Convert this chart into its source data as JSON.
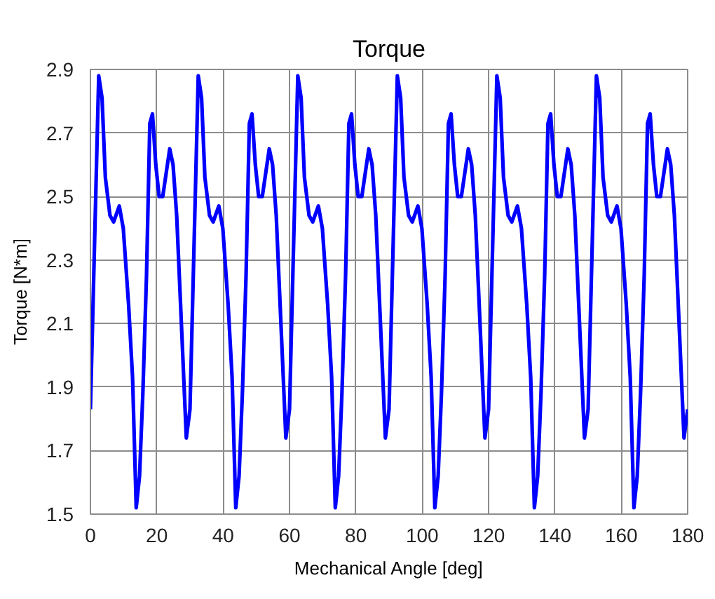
{
  "chart_data": {
    "type": "line",
    "title": "Torque",
    "xlabel": "Mechanical Angle [deg]",
    "ylabel": "Torque [N*m]",
    "series": [
      {
        "color": "#0000ff",
        "x": [
          0,
          2.5,
          3.5,
          4.5,
          5.9,
          7,
          8.7,
          9.9,
          11.5,
          12.7,
          13.8,
          14.8,
          15.8,
          16.9,
          17.9,
          18.7,
          19.7,
          20.7,
          21.8,
          23.9,
          24.9,
          26,
          27.5,
          28.9,
          30,
          32.5,
          33.5,
          34.5,
          35.9,
          37,
          38.7,
          39.9,
          41.5,
          42.7,
          43.8,
          44.8,
          45.8,
          46.9,
          47.9,
          48.7,
          49.7,
          50.7,
          51.8,
          53.9,
          54.9,
          56,
          57.5,
          58.9,
          60,
          62.5,
          63.5,
          64.5,
          65.9,
          67,
          68.7,
          69.9,
          71.5,
          72.7,
          73.8,
          74.8,
          75.8,
          76.9,
          77.9,
          78.7,
          79.7,
          80.7,
          81.8,
          83.9,
          84.9,
          86,
          87.5,
          88.9,
          90,
          92.5,
          93.5,
          94.5,
          95.9,
          97,
          98.7,
          99.9,
          101.5,
          102.7,
          103.8,
          104.8,
          105.8,
          106.9,
          107.9,
          108.7,
          109.7,
          110.7,
          111.8,
          113.9,
          114.9,
          116,
          117.5,
          118.9,
          120,
          122.5,
          123.5,
          124.5,
          125.9,
          127,
          128.7,
          129.9,
          131.5,
          132.7,
          133.8,
          134.8,
          135.8,
          136.9,
          137.9,
          138.7,
          139.7,
          140.7,
          141.8,
          143.9,
          144.9,
          146,
          147.5,
          148.9,
          150,
          152.5,
          153.5,
          154.5,
          155.9,
          157,
          158.7,
          159.9,
          161.5,
          162.7,
          163.8,
          164.8,
          165.8,
          166.9,
          167.9,
          168.7,
          169.7,
          170.7,
          171.8,
          173.9,
          174.9,
          176,
          177.5,
          178.9,
          180
        ],
        "values": [
          1.83,
          2.88,
          2.81,
          2.56,
          2.44,
          2.42,
          2.47,
          2.4,
          2.16,
          1.93,
          1.52,
          1.62,
          1.88,
          2.25,
          2.73,
          2.76,
          2.6,
          2.5,
          2.5,
          2.65,
          2.6,
          2.44,
          2.08,
          1.74,
          1.83,
          2.88,
          2.81,
          2.56,
          2.44,
          2.42,
          2.47,
          2.4,
          2.16,
          1.93,
          1.52,
          1.62,
          1.88,
          2.25,
          2.73,
          2.76,
          2.6,
          2.5,
          2.5,
          2.65,
          2.6,
          2.44,
          2.08,
          1.74,
          1.83,
          2.88,
          2.81,
          2.56,
          2.44,
          2.42,
          2.47,
          2.4,
          2.16,
          1.93,
          1.52,
          1.62,
          1.88,
          2.25,
          2.73,
          2.76,
          2.6,
          2.5,
          2.5,
          2.65,
          2.6,
          2.44,
          2.08,
          1.74,
          1.83,
          2.88,
          2.81,
          2.56,
          2.44,
          2.42,
          2.47,
          2.4,
          2.16,
          1.93,
          1.52,
          1.62,
          1.88,
          2.25,
          2.73,
          2.76,
          2.6,
          2.5,
          2.5,
          2.65,
          2.6,
          2.44,
          2.08,
          1.74,
          1.83,
          2.88,
          2.81,
          2.56,
          2.44,
          2.42,
          2.47,
          2.4,
          2.16,
          1.93,
          1.52,
          1.62,
          1.88,
          2.25,
          2.73,
          2.76,
          2.6,
          2.5,
          2.5,
          2.65,
          2.6,
          2.44,
          2.08,
          1.74,
          1.83,
          2.88,
          2.81,
          2.56,
          2.44,
          2.42,
          2.47,
          2.4,
          2.16,
          1.93,
          1.52,
          1.62,
          1.88,
          2.25,
          2.73,
          2.76,
          2.6,
          2.5,
          2.5,
          2.65,
          2.6,
          2.44,
          2.08,
          1.74,
          1.83
        ]
      }
    ],
    "xlim": [
      0,
      180
    ],
    "ylim": [
      1.5,
      2.9
    ],
    "xticks": [
      0,
      20,
      40,
      60,
      80,
      100,
      120,
      140,
      160,
      180
    ],
    "yticks": [
      1.5,
      1.7,
      1.9,
      2.1,
      2.3,
      2.5,
      2.7,
      2.9
    ],
    "grid": true,
    "marker": "none",
    "line_style": "solid"
  }
}
